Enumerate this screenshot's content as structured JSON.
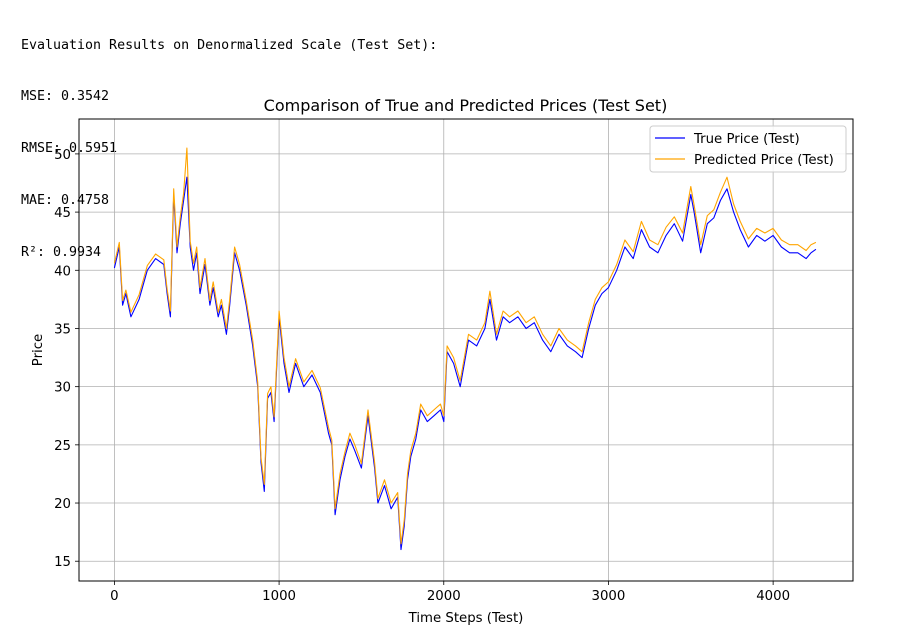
{
  "metrics": {
    "heading": "Evaluation Results on Denormalized Scale (Test Set):",
    "mse": "MSE: 0.3542",
    "rmse": "RMSE: 0.5951",
    "mae": "MAE: 0.4758",
    "r2": "R²: 0.9934"
  },
  "chart_data": {
    "type": "line",
    "title": "Comparison of True and Predicted Prices (Test Set)",
    "xlabel": "Time Steps (Test)",
    "ylabel": "Price",
    "xlim": [
      -215,
      4485
    ],
    "ylim": [
      13.3,
      53.0
    ],
    "xticks": [
      0,
      1000,
      2000,
      3000,
      4000
    ],
    "xtick_labels": [
      "0",
      "1000",
      "2000",
      "3000",
      "4000"
    ],
    "yticks": [
      15,
      20,
      25,
      30,
      35,
      40,
      45,
      50
    ],
    "ytick_labels": [
      "15",
      "20",
      "25",
      "30",
      "35",
      "40",
      "45",
      "50"
    ],
    "grid": true,
    "legend_position": "top-right",
    "series": [
      {
        "name": "True Price (Test)",
        "color": "#0000ff",
        "x": [
          0,
          30,
          50,
          70,
          100,
          150,
          200,
          250,
          300,
          320,
          340,
          360,
          380,
          400,
          420,
          440,
          460,
          480,
          500,
          520,
          550,
          580,
          600,
          630,
          650,
          680,
          700,
          730,
          760,
          800,
          840,
          870,
          890,
          910,
          930,
          950,
          970,
          1000,
          1030,
          1060,
          1100,
          1150,
          1200,
          1250,
          1300,
          1320,
          1340,
          1370,
          1400,
          1430,
          1460,
          1500,
          1540,
          1580,
          1600,
          1640,
          1680,
          1720,
          1740,
          1760,
          1780,
          1800,
          1830,
          1860,
          1900,
          1940,
          1980,
          2000,
          2020,
          2060,
          2100,
          2150,
          2200,
          2250,
          2280,
          2320,
          2360,
          2400,
          2450,
          2500,
          2550,
          2600,
          2650,
          2700,
          2750,
          2800,
          2840,
          2880,
          2920,
          2960,
          3000,
          3050,
          3100,
          3150,
          3200,
          3250,
          3300,
          3350,
          3400,
          3450,
          3500,
          3520,
          3560,
          3600,
          3640,
          3680,
          3720,
          3760,
          3800,
          3850,
          3900,
          3950,
          4000,
          4050,
          4100,
          4150,
          4200,
          4230,
          4260
        ],
        "values": [
          40.2,
          42.0,
          37.0,
          38.0,
          36.0,
          37.5,
          40.0,
          41.0,
          40.5,
          38.0,
          36.0,
          46.5,
          41.5,
          44.0,
          46.0,
          48.0,
          42.0,
          40.0,
          41.5,
          38.0,
          40.5,
          37.0,
          38.5,
          36.0,
          37.0,
          34.5,
          37.0,
          41.5,
          40.0,
          37.0,
          33.5,
          30.0,
          23.5,
          21.0,
          29.0,
          29.5,
          27.0,
          36.0,
          32.0,
          29.5,
          32.0,
          30.0,
          31.0,
          29.5,
          26.0,
          25.0,
          19.0,
          22.0,
          24.0,
          25.5,
          24.5,
          23.0,
          27.5,
          23.0,
          20.0,
          21.5,
          19.5,
          20.5,
          16.0,
          18.0,
          22.0,
          24.0,
          25.5,
          28.0,
          27.0,
          27.5,
          28.0,
          27.0,
          33.0,
          32.0,
          30.0,
          34.0,
          33.5,
          35.0,
          37.5,
          34.0,
          36.0,
          35.5,
          36.0,
          35.0,
          35.5,
          34.0,
          33.0,
          34.5,
          33.5,
          33.0,
          32.5,
          35.0,
          37.0,
          38.0,
          38.5,
          40.0,
          42.0,
          41.0,
          43.5,
          42.0,
          41.5,
          43.0,
          44.0,
          42.5,
          46.5,
          45.0,
          41.5,
          44.0,
          44.5,
          46.0,
          47.0,
          45.0,
          43.5,
          42.0,
          43.0,
          42.5,
          43.0,
          42.0,
          41.5,
          41.5,
          41.0,
          41.5,
          41.8
        ]
      },
      {
        "name": "Predicted Price (Test)",
        "color": "#ffa500",
        "x": [
          0,
          30,
          50,
          70,
          100,
          150,
          200,
          250,
          300,
          320,
          340,
          360,
          380,
          400,
          420,
          440,
          460,
          480,
          500,
          520,
          550,
          580,
          600,
          630,
          650,
          680,
          700,
          730,
          760,
          800,
          840,
          870,
          890,
          910,
          930,
          950,
          970,
          1000,
          1030,
          1060,
          1100,
          1150,
          1200,
          1250,
          1300,
          1320,
          1340,
          1370,
          1400,
          1430,
          1460,
          1500,
          1540,
          1580,
          1600,
          1640,
          1680,
          1720,
          1740,
          1760,
          1780,
          1800,
          1830,
          1860,
          1900,
          1940,
          1980,
          2000,
          2020,
          2060,
          2100,
          2150,
          2200,
          2250,
          2280,
          2320,
          2360,
          2400,
          2450,
          2500,
          2550,
          2600,
          2650,
          2700,
          2750,
          2800,
          2840,
          2880,
          2920,
          2960,
          3000,
          3050,
          3100,
          3150,
          3200,
          3250,
          3300,
          3350,
          3400,
          3450,
          3500,
          3520,
          3560,
          3600,
          3640,
          3680,
          3720,
          3760,
          3800,
          3850,
          3900,
          3950,
          4000,
          4050,
          4100,
          4150,
          4200,
          4230,
          4260
        ],
        "values": [
          40.6,
          42.4,
          37.4,
          38.3,
          36.4,
          37.9,
          40.4,
          41.4,
          40.9,
          38.4,
          36.5,
          47.0,
          42.0,
          44.6,
          46.6,
          50.5,
          42.5,
          40.6,
          42.0,
          38.5,
          41.0,
          37.4,
          39.0,
          36.4,
          37.5,
          35.0,
          37.5,
          42.0,
          40.5,
          37.4,
          34.0,
          30.4,
          23.9,
          21.6,
          29.4,
          30.0,
          27.4,
          36.5,
          32.5,
          30.0,
          32.4,
          30.4,
          31.4,
          29.9,
          26.5,
          25.4,
          19.5,
          22.5,
          24.4,
          26.0,
          25.0,
          23.4,
          28.0,
          23.5,
          20.4,
          22.0,
          20.0,
          20.9,
          16.5,
          18.5,
          22.5,
          24.5,
          26.0,
          28.5,
          27.5,
          28.0,
          28.5,
          27.5,
          33.5,
          32.5,
          30.5,
          34.5,
          34.0,
          35.5,
          38.2,
          34.5,
          36.5,
          36.0,
          36.5,
          35.5,
          36.0,
          34.5,
          33.5,
          35.0,
          34.0,
          33.5,
          33.0,
          35.5,
          37.5,
          38.5,
          39.0,
          40.5,
          42.6,
          41.6,
          44.2,
          42.6,
          42.2,
          43.7,
          44.6,
          43.2,
          47.2,
          45.6,
          42.2,
          44.7,
          45.2,
          46.7,
          48.0,
          45.7,
          44.2,
          42.7,
          43.6,
          43.2,
          43.6,
          42.6,
          42.2,
          42.2,
          41.7,
          42.2,
          42.4
        ]
      }
    ]
  }
}
